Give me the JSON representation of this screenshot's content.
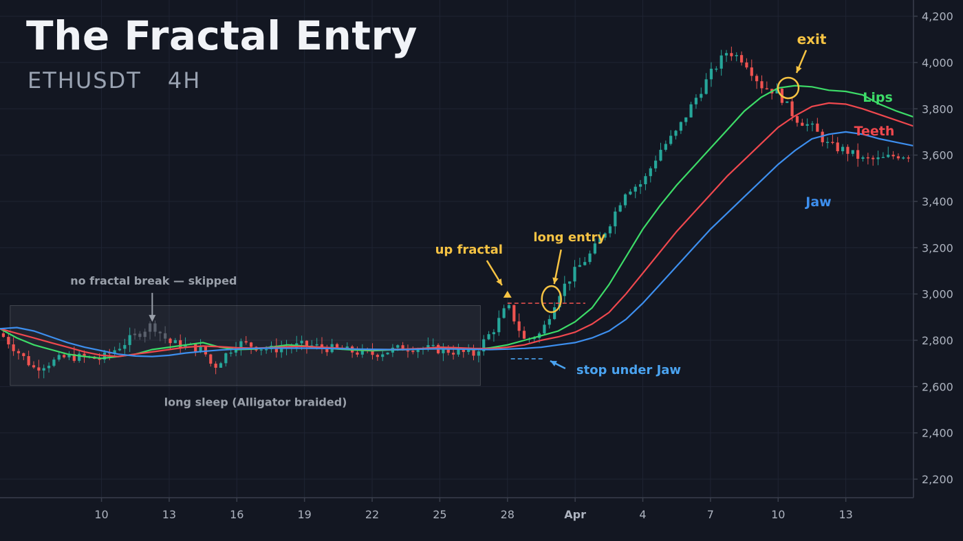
{
  "header": {
    "title": "The Fractal Entry",
    "symbol": "ETHUSDT",
    "timeframe": "4H"
  },
  "colors": {
    "background": "#131722",
    "grid": "#1f2433",
    "axis_text": "#aeb4c0",
    "up_candle": "#26a69a",
    "down_candle": "#ef5350",
    "faded_candle": "#5a606c",
    "lips": "#3ddc68",
    "teeth": "#f0484e",
    "jaw": "#3d8fef",
    "annotation_yellow": "#f6c343",
    "annotation_blue": "#4aa3f0",
    "annotation_gray": "#9aa0aa"
  },
  "chart_data": {
    "type": "candlestick",
    "y_axis": {
      "ticks": [
        2200,
        2400,
        2600,
        2800,
        3000,
        3200,
        3400,
        3600,
        3800,
        4000,
        4200
      ],
      "range": [
        2120,
        4270
      ],
      "position": "right",
      "tick_format": "thousands-comma"
    },
    "x_axis": {
      "range": [
        0,
        27
      ],
      "ticks": [
        {
          "label": "10",
          "x": 3
        },
        {
          "label": "13",
          "x": 5
        },
        {
          "label": "16",
          "x": 7
        },
        {
          "label": "19",
          "x": 9
        },
        {
          "label": "22",
          "x": 11
        },
        {
          "label": "25",
          "x": 13
        },
        {
          "label": "28",
          "x": 15
        },
        {
          "label": "Apr",
          "x": 17,
          "bold": true
        },
        {
          "label": "4",
          "x": 19
        },
        {
          "label": "7",
          "x": 21
        },
        {
          "label": "10",
          "x": 23
        },
        {
          "label": "13",
          "x": 25
        }
      ]
    },
    "grid": true,
    "series": [
      {
        "name": "Lips",
        "points": [
          [
            0,
            2850
          ],
          [
            0.5,
            2810
          ],
          [
            1,
            2780
          ],
          [
            1.5,
            2760
          ],
          [
            2,
            2740
          ],
          [
            2.5,
            2730
          ],
          [
            3,
            2722
          ],
          [
            3.5,
            2730
          ],
          [
            4,
            2740
          ],
          [
            4.5,
            2760
          ],
          [
            5,
            2770
          ],
          [
            5.5,
            2780
          ],
          [
            6,
            2790
          ],
          [
            6.5,
            2770
          ],
          [
            7,
            2760
          ],
          [
            7.5,
            2762
          ],
          [
            8,
            2770
          ],
          [
            8.5,
            2780
          ],
          [
            9,
            2775
          ],
          [
            9.5,
            2768
          ],
          [
            10,
            2762
          ],
          [
            10.5,
            2758
          ],
          [
            11,
            2755
          ],
          [
            11.5,
            2758
          ],
          [
            12,
            2760
          ],
          [
            12.5,
            2762
          ],
          [
            13,
            2770
          ],
          [
            13.5,
            2765
          ],
          [
            14,
            2760
          ],
          [
            14.5,
            2768
          ],
          [
            15,
            2780
          ],
          [
            15.5,
            2800
          ],
          [
            16,
            2820
          ],
          [
            16.5,
            2840
          ],
          [
            17,
            2880
          ],
          [
            17.5,
            2940
          ],
          [
            18,
            3040
          ],
          [
            18.5,
            3160
          ],
          [
            19,
            3280
          ],
          [
            19.5,
            3380
          ],
          [
            20,
            3470
          ],
          [
            20.5,
            3550
          ],
          [
            21,
            3630
          ],
          [
            21.5,
            3710
          ],
          [
            22,
            3790
          ],
          [
            22.5,
            3850
          ],
          [
            23,
            3890
          ],
          [
            23.5,
            3900
          ],
          [
            24,
            3895
          ],
          [
            24.5,
            3880
          ],
          [
            25,
            3875
          ],
          [
            25.5,
            3860
          ],
          [
            26,
            3820
          ],
          [
            26.5,
            3790
          ],
          [
            27,
            3765
          ]
        ]
      },
      {
        "name": "Teeth",
        "points": [
          [
            0,
            2850
          ],
          [
            0.5,
            2830
          ],
          [
            1,
            2810
          ],
          [
            1.5,
            2790
          ],
          [
            2,
            2770
          ],
          [
            2.5,
            2750
          ],
          [
            3,
            2735
          ],
          [
            3.5,
            2730
          ],
          [
            4,
            2740
          ],
          [
            4.5,
            2750
          ],
          [
            5,
            2760
          ],
          [
            5.5,
            2770
          ],
          [
            6,
            2775
          ],
          [
            6.5,
            2772
          ],
          [
            7,
            2768
          ],
          [
            7.5,
            2766
          ],
          [
            8,
            2768
          ],
          [
            8.5,
            2772
          ],
          [
            9,
            2774
          ],
          [
            9.5,
            2770
          ],
          [
            10,
            2766
          ],
          [
            10.5,
            2762
          ],
          [
            11,
            2760
          ],
          [
            11.5,
            2760
          ],
          [
            12,
            2762
          ],
          [
            12.5,
            2765
          ],
          [
            13,
            2770
          ],
          [
            13.5,
            2768
          ],
          [
            14,
            2765
          ],
          [
            14.5,
            2764
          ],
          [
            15,
            2770
          ],
          [
            15.5,
            2780
          ],
          [
            16,
            2800
          ],
          [
            16.5,
            2815
          ],
          [
            17,
            2835
          ],
          [
            17.5,
            2870
          ],
          [
            18,
            2920
          ],
          [
            18.5,
            3000
          ],
          [
            19,
            3090
          ],
          [
            19.5,
            3180
          ],
          [
            20,
            3270
          ],
          [
            20.5,
            3350
          ],
          [
            21,
            3430
          ],
          [
            21.5,
            3510
          ],
          [
            22,
            3580
          ],
          [
            22.5,
            3650
          ],
          [
            23,
            3720
          ],
          [
            23.5,
            3770
          ],
          [
            24,
            3810
          ],
          [
            24.5,
            3825
          ],
          [
            25,
            3820
          ],
          [
            25.5,
            3800
          ],
          [
            26,
            3775
          ],
          [
            26.5,
            3750
          ],
          [
            27,
            3725
          ]
        ]
      },
      {
        "name": "Jaw",
        "points": [
          [
            0,
            2850
          ],
          [
            0.5,
            2855
          ],
          [
            1,
            2840
          ],
          [
            1.5,
            2815
          ],
          [
            2,
            2790
          ],
          [
            2.5,
            2770
          ],
          [
            3,
            2755
          ],
          [
            3.5,
            2740
          ],
          [
            4,
            2732
          ],
          [
            4.5,
            2730
          ],
          [
            5,
            2735
          ],
          [
            5.5,
            2745
          ],
          [
            6,
            2752
          ],
          [
            6.5,
            2758
          ],
          [
            7,
            2762
          ],
          [
            7.5,
            2765
          ],
          [
            8,
            2766
          ],
          [
            8.5,
            2766
          ],
          [
            9,
            2766
          ],
          [
            9.5,
            2765
          ],
          [
            10,
            2764
          ],
          [
            10.5,
            2762
          ],
          [
            11,
            2761
          ],
          [
            11.5,
            2760
          ],
          [
            12,
            2760
          ],
          [
            12.5,
            2762
          ],
          [
            13,
            2763
          ],
          [
            13.5,
            2762
          ],
          [
            14,
            2761
          ],
          [
            14.5,
            2760
          ],
          [
            15,
            2762
          ],
          [
            15.5,
            2765
          ],
          [
            16,
            2770
          ],
          [
            16.5,
            2780
          ],
          [
            17,
            2790
          ],
          [
            17.5,
            2810
          ],
          [
            18,
            2840
          ],
          [
            18.5,
            2890
          ],
          [
            19,
            2960
          ],
          [
            19.5,
            3040
          ],
          [
            20,
            3120
          ],
          [
            20.5,
            3200
          ],
          [
            21,
            3280
          ],
          [
            21.5,
            3350
          ],
          [
            22,
            3420
          ],
          [
            22.5,
            3490
          ],
          [
            23,
            3560
          ],
          [
            23.5,
            3620
          ],
          [
            24,
            3670
          ],
          [
            24.5,
            3690
          ],
          [
            25,
            3700
          ],
          [
            25.5,
            3690
          ],
          [
            26,
            3670
          ],
          [
            26.5,
            3655
          ],
          [
            27,
            3640
          ]
        ]
      }
    ],
    "series_labels": [
      {
        "name": "Lips",
        "text": "Lips"
      },
      {
        "name": "Teeth",
        "text": "Teeth"
      },
      {
        "name": "Jaw",
        "text": "Jaw"
      }
    ],
    "candles_note_ranges": {
      "sideways_box": {
        "x_from": 0.3,
        "x_to": 14.2,
        "y_from": 2605,
        "y_to": 2950
      }
    },
    "annotations": {
      "exit": {
        "label": "exit",
        "x": 23.3,
        "y": 3890
      },
      "up_fractal": {
        "label": "up fractal",
        "x": 15,
        "y": 2990,
        "level": 2960
      },
      "long_entry": {
        "label": "long entry",
        "x": 16.3,
        "y": 2960
      },
      "stop": {
        "label": "stop under Jaw",
        "x_from": 15.1,
        "x_to": 16.1,
        "level": 2720
      },
      "no_break": {
        "label": "no fractal break — skipped",
        "x": 4.5,
        "y": 2880
      },
      "sleep": {
        "label": "long sleep (Alligator braided)"
      }
    }
  }
}
